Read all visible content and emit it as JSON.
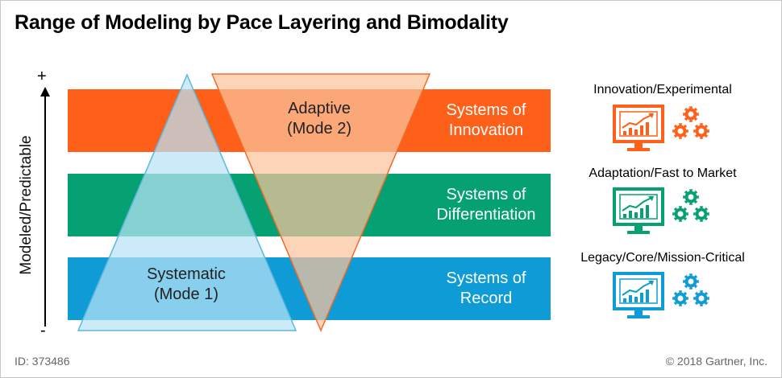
{
  "title": "Range of Modeling by Pace Layering and Bimodality",
  "y_axis": {
    "label": "Modeled/Predictable",
    "top": "+",
    "bottom": "-"
  },
  "bands": [
    {
      "line1": "Systems of",
      "line2": "Innovation",
      "color": "#fe5f19"
    },
    {
      "line1": "Systems of",
      "line2": "Differentiation",
      "color": "#06a172"
    },
    {
      "line1": "Systems of",
      "line2": "Record",
      "color": "#0e9bd6"
    }
  ],
  "triangles": {
    "systematic": {
      "line1": "Systematic",
      "line2": "(Mode 1)"
    },
    "adaptive": {
      "line1": "Adaptive",
      "line2": "(Mode 2)"
    }
  },
  "categories": [
    {
      "label": "Innovation/Experimental",
      "icon": "monitor-chart-gears-icon",
      "color": "#fe5f19"
    },
    {
      "label": "Adaptation/Fast to Market",
      "icon": "monitor-chart-gears-icon",
      "color": "#06a172"
    },
    {
      "label": "Legacy/Core/Mission-Critical",
      "icon": "monitor-chart-gears-icon",
      "color": "#0e9bd6"
    }
  ],
  "footer": {
    "id": "ID: 373486",
    "copyright": "© 2018 Gartner, Inc."
  }
}
